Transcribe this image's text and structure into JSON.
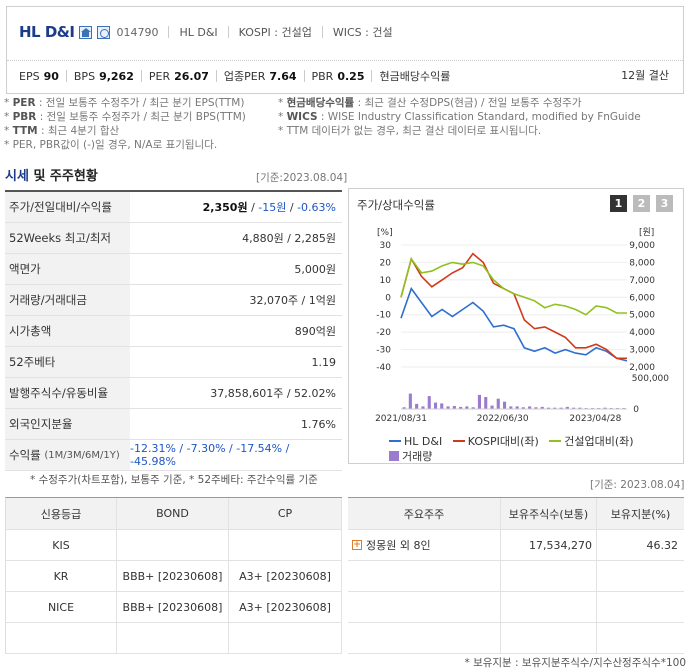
{
  "header": {
    "company_name": "HL D&I",
    "stock_code": "014790",
    "meta": [
      "HL D&I",
      "KOSPI : 건설업",
      "WICS : 건설"
    ],
    "metrics": [
      {
        "label": "EPS",
        "value": "90"
      },
      {
        "label": "BPS",
        "value": "9,262"
      },
      {
        "label": "PER",
        "value": "26.07"
      },
      {
        "label": "업종PER",
        "value": "7.64"
      },
      {
        "label": "PBR",
        "value": "0.25"
      },
      {
        "label": "현금배당수익률",
        "value": ""
      }
    ],
    "settlement": "12월 결산"
  },
  "notes": {
    "left": [
      {
        "key": "PER",
        "text": ": 전일 보통주 수정주가 / 최근 분기 EPS(TTM)"
      },
      {
        "key": "PBR",
        "text": ": 전일 보통주 수정주가 / 최근 분기 BPS(TTM)"
      },
      {
        "key": "TTM",
        "text": ": 최근 4분기 합산"
      },
      {
        "key": "",
        "text": "PER, PBR값이 (-)일 경우, N/A로 표기됩니다."
      }
    ],
    "right": [
      {
        "key": "현금배당수익률",
        "text": ": 최근 결산 수정DPS(현금) / 전일 보통주 수정주가"
      },
      {
        "key": "WICS",
        "text": ": WISE Industry Classification Standard, modified by FnGuide"
      },
      {
        "key": "",
        "text": "TTM 데이터가 없는 경우, 최근 결산 데이터로 표시됩니다."
      }
    ]
  },
  "market": {
    "title_blue": "시세",
    "title_rest": " 및 주주현황",
    "base_date": "[기준:2023.08.04]",
    "rows": [
      {
        "label": "주가/전일대비/수익률",
        "v1": "2,350원",
        "v2": "-15원",
        "v3": "-0.63%"
      },
      {
        "label": "52Weeks 최고/최저",
        "value": "4,880원 / 2,285원"
      },
      {
        "label": "액면가",
        "value": "5,000원"
      },
      {
        "label": "거래량/거래대금",
        "value": "32,070주 / 1억원"
      },
      {
        "label": "시가총액",
        "value": "890억원"
      },
      {
        "label": "52주베타",
        "value": "1.19"
      },
      {
        "label": "발행주식수/유동비율",
        "value": "37,858,601주 / 52.02%"
      },
      {
        "label": "외국인지분율",
        "value": "1.76%"
      },
      {
        "label": "수익률",
        "label_small": "(1M/3M/6M/1Y)",
        "value": "-12.31% / -7.30% / -17.54% / -45.98%"
      }
    ],
    "note": "* 수정주가(차트포함), 보통주 기준, * 52주베타: 주간수익률 기준"
  },
  "chart": {
    "title": "주가/상대수익률",
    "tabs": [
      "1",
      "2",
      "3"
    ],
    "legend": {
      "stock": "HL D&I",
      "kospi": "KOSPI대비(좌)",
      "sector": "건설업대비(좌)",
      "volume": "거래량"
    },
    "colors": {
      "stock": "#2f6fd0",
      "kospi": "#cf3a1a",
      "sector": "#8fc21f",
      "volume": "#9a7bd0"
    }
  },
  "chart_data": {
    "type": "line",
    "x_ticks": [
      "2021/08/31",
      "2022/06/30",
      "2023/04/28"
    ],
    "left_axis": {
      "unit": "[%]",
      "ticks": [
        30,
        20,
        10,
        0,
        -10,
        -20,
        -30,
        -40
      ],
      "range": [
        -40,
        30
      ]
    },
    "right_axis": {
      "unit": "[원]",
      "ticks": [
        "9,000",
        "8,000",
        "7,000",
        "6,000",
        "5,000",
        "4,000",
        "3,000",
        "2,000"
      ],
      "range": [
        2000,
        9000
      ]
    },
    "volume_axis": {
      "ticks": [
        "500,000",
        "0"
      ],
      "range": [
        0,
        700000
      ]
    },
    "series": [
      {
        "name": "HL D&I",
        "axis": "right",
        "values": [
          4800,
          6500,
          5700,
          4900,
          5300,
          4900,
          5300,
          5700,
          5200,
          4300,
          4400,
          4200,
          3100,
          2900,
          3100,
          2800,
          3000,
          2800,
          2700,
          3100,
          2900,
          2500,
          2350
        ]
      },
      {
        "name": "KOSPI대비(좌)",
        "axis": "left",
        "values": [
          0,
          22,
          12,
          6,
          10,
          14,
          17,
          25,
          20,
          8,
          5,
          2,
          -13,
          -18,
          -17,
          -20,
          -23,
          -29,
          -29,
          -27,
          -30,
          -35,
          -35
        ]
      },
      {
        "name": "건설업대비(좌)",
        "axis": "left",
        "values": [
          0,
          22,
          14,
          15,
          18,
          20,
          19,
          20,
          18,
          10,
          5,
          2,
          0,
          -2,
          -6,
          -4,
          -5,
          -7,
          -10,
          -5,
          -6,
          -9,
          -9
        ]
      },
      {
        "name": "거래량",
        "axis": "volume",
        "values": [
          40000,
          360000,
          120000,
          60000,
          300000,
          150000,
          130000,
          60000,
          70000,
          50000,
          60000,
          40000,
          330000,
          280000,
          80000,
          240000,
          170000,
          60000,
          60000,
          40000,
          60000,
          40000,
          50000,
          30000,
          30000,
          30000,
          50000,
          30000,
          30000,
          20000,
          20000,
          20000,
          30000,
          20000,
          20000,
          20000
        ]
      }
    ]
  },
  "credit": {
    "headers": [
      "신용등급",
      "BOND",
      "CP"
    ],
    "rows": [
      {
        "agency": "KIS",
        "bond": "",
        "cp": ""
      },
      {
        "agency": "KR",
        "bond": "BBB+ [20230608]",
        "cp": "A3+ [20230608]"
      },
      {
        "agency": "NICE",
        "bond": "BBB+ [20230608]",
        "cp": "A3+ [20230608]"
      },
      {
        "agency": "",
        "bond": "",
        "cp": ""
      }
    ]
  },
  "shareholders": {
    "base_date": "[기준: 2023.08.04]",
    "headers": [
      "주요주주",
      "보유주식수(보통)",
      "보유지분(%)"
    ],
    "rows": [
      {
        "name": "정몽원 외 8인",
        "shares": "17,534,270",
        "pct": "46.32"
      },
      {
        "name": "",
        "shares": "",
        "pct": ""
      },
      {
        "name": "",
        "shares": "",
        "pct": ""
      },
      {
        "name": "",
        "shares": "",
        "pct": ""
      }
    ],
    "note": "* 보유지분 : 보유지분주식수/지수산정주식수*100"
  }
}
